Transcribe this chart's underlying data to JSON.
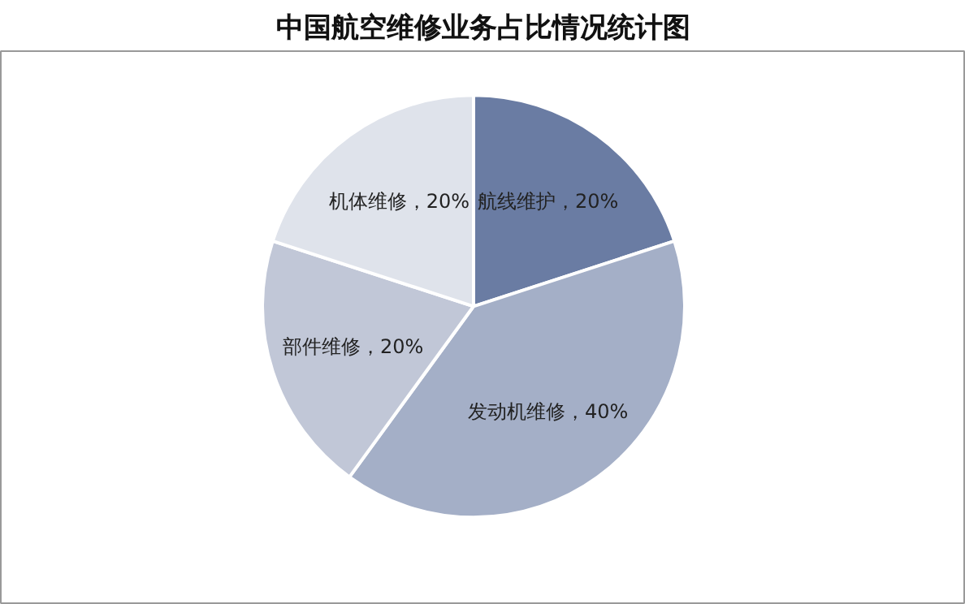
{
  "chart_data": {
    "type": "pie",
    "title": "中国航空维修业务占比情况统计图",
    "categories": [
      "航线维护",
      "发动机维修",
      "部件维修",
      "机体维修"
    ],
    "values": [
      20,
      40,
      20,
      20
    ],
    "value_labels": [
      "20%",
      "40%",
      "20%",
      "20%"
    ],
    "colors": [
      "#6a7ca3",
      "#a4afc7",
      "#c1c7d7",
      "#dfe3eb"
    ]
  }
}
